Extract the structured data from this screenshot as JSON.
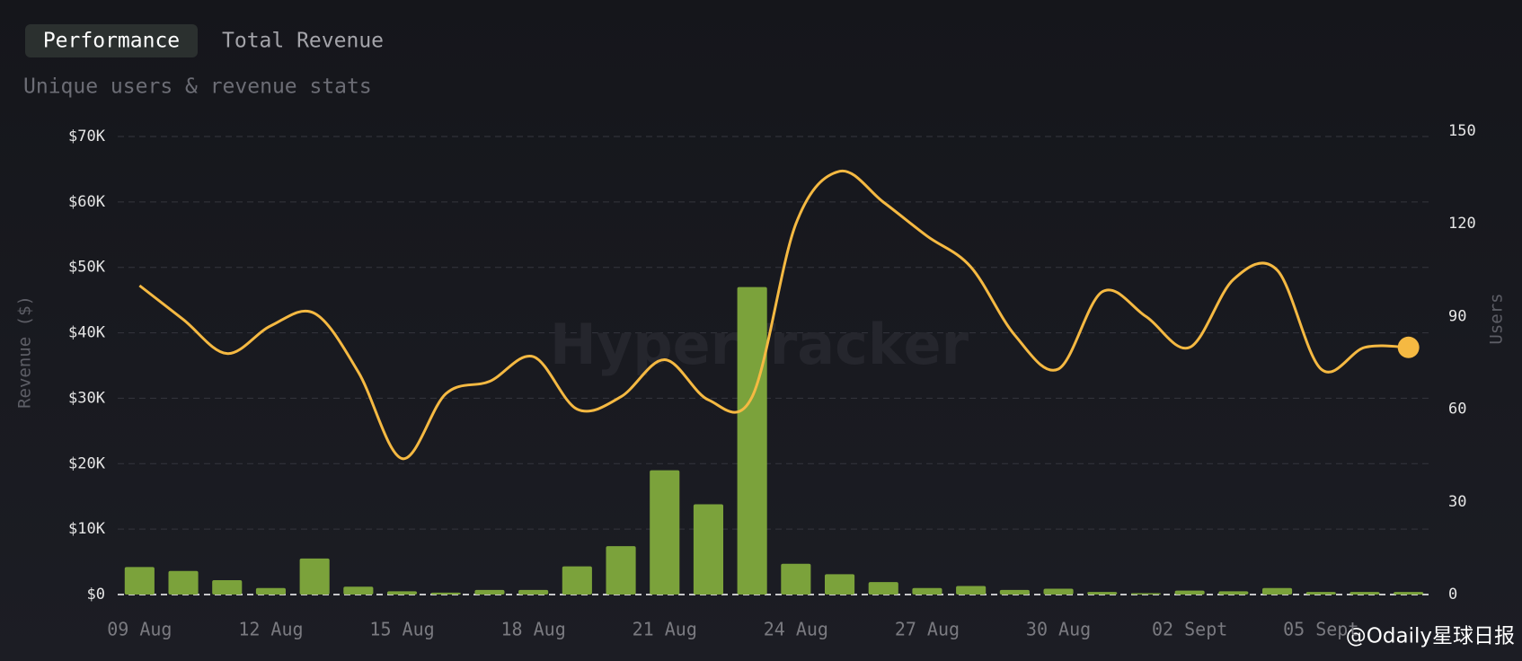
{
  "tabs": [
    "Performance",
    "Total Revenue"
  ],
  "subtitle": "Unique users & revenue stats",
  "watermark": "HyperTracker",
  "credit": "@Odaily星球日报",
  "chart_data": {
    "type": "bar",
    "categories": [
      "09 Aug",
      null,
      null,
      "12 Aug",
      null,
      null,
      "15 Aug",
      null,
      null,
      "18 Aug",
      null,
      null,
      "21 Aug",
      null,
      null,
      "24 Aug",
      null,
      null,
      "27 Aug",
      null,
      null,
      "30 Aug",
      null,
      null,
      "02 Sept",
      null,
      null,
      "05 Sept",
      null,
      null
    ],
    "y_label": "Revenue ($)",
    "y2_label": "Users",
    "series": [
      {
        "type": "bar",
        "color": "#7ba23b",
        "values": [
          4200,
          3600,
          2200,
          1000,
          5500,
          1200,
          500,
          300,
          700,
          700,
          4300,
          7400,
          19000,
          13800,
          47000,
          4700,
          3100,
          1900,
          1000,
          1300,
          700,
          900,
          400,
          200,
          600,
          500,
          1000,
          400,
          400,
          400
        ]
      },
      {
        "type": "line",
        "axis": "y2",
        "color": "#f5b942",
        "values": [
          100,
          89,
          78,
          87,
          91,
          72,
          44,
          65,
          69,
          77,
          60,
          64,
          76,
          63,
          64,
          120,
          137,
          127,
          116,
          106,
          84,
          73,
          98,
          90,
          80,
          102,
          105,
          73,
          80,
          80
        ]
      }
    ],
    "ylim": [
      0,
      70000
    ],
    "yticks": [
      {
        "value": 0,
        "label": "$0"
      },
      {
        "value": 10000,
        "label": "$10K"
      },
      {
        "value": 20000,
        "label": "$20K"
      },
      {
        "value": 30000,
        "label": "$30K"
      },
      {
        "value": 40000,
        "label": "$40K"
      },
      {
        "value": 50000,
        "label": "$50K"
      },
      {
        "value": 60000,
        "label": "$60K"
      },
      {
        "value": 70000,
        "label": "$70K"
      }
    ],
    "y2lim": [
      0,
      150
    ],
    "y2ticks": [
      0,
      30,
      60,
      90,
      120,
      150
    ],
    "grid": true
  }
}
